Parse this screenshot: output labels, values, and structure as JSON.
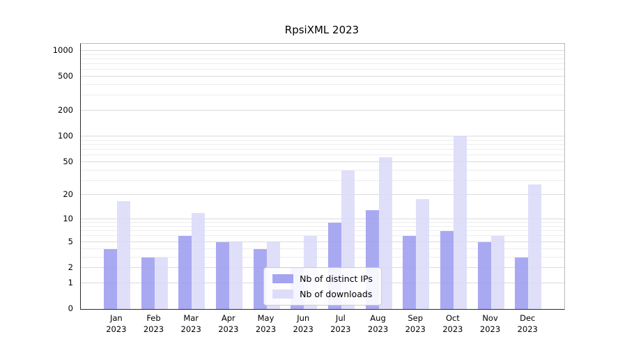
{
  "title": "RpsiXML 2023",
  "chart_data": {
    "type": "bar",
    "title": "RpsiXML 2023",
    "categories": [
      "Jan",
      "Feb",
      "Mar",
      "Apr",
      "May",
      "Jun",
      "Jul",
      "Aug",
      "Sep",
      "Oct",
      "Nov",
      "Dec"
    ],
    "year": "2023",
    "series": [
      {
        "name": "Nb of distinct IPs",
        "color": "#9a9af0",
        "values": [
          4,
          3,
          6,
          5,
          4,
          2,
          9,
          13,
          6,
          7,
          5,
          3
        ]
      },
      {
        "name": "Nb of downloads",
        "color": "#d9d9f9",
        "values": [
          17,
          3,
          12,
          5,
          5,
          6,
          40,
          57,
          18,
          102,
          6,
          27
        ]
      }
    ],
    "yticks": [
      0,
      1,
      2,
      5,
      10,
      20,
      50,
      100,
      200,
      500,
      1000
    ],
    "ylim": [
      0,
      1000
    ],
    "yscale": "log(v+1)",
    "grid": true,
    "legend_position": "lower center"
  }
}
